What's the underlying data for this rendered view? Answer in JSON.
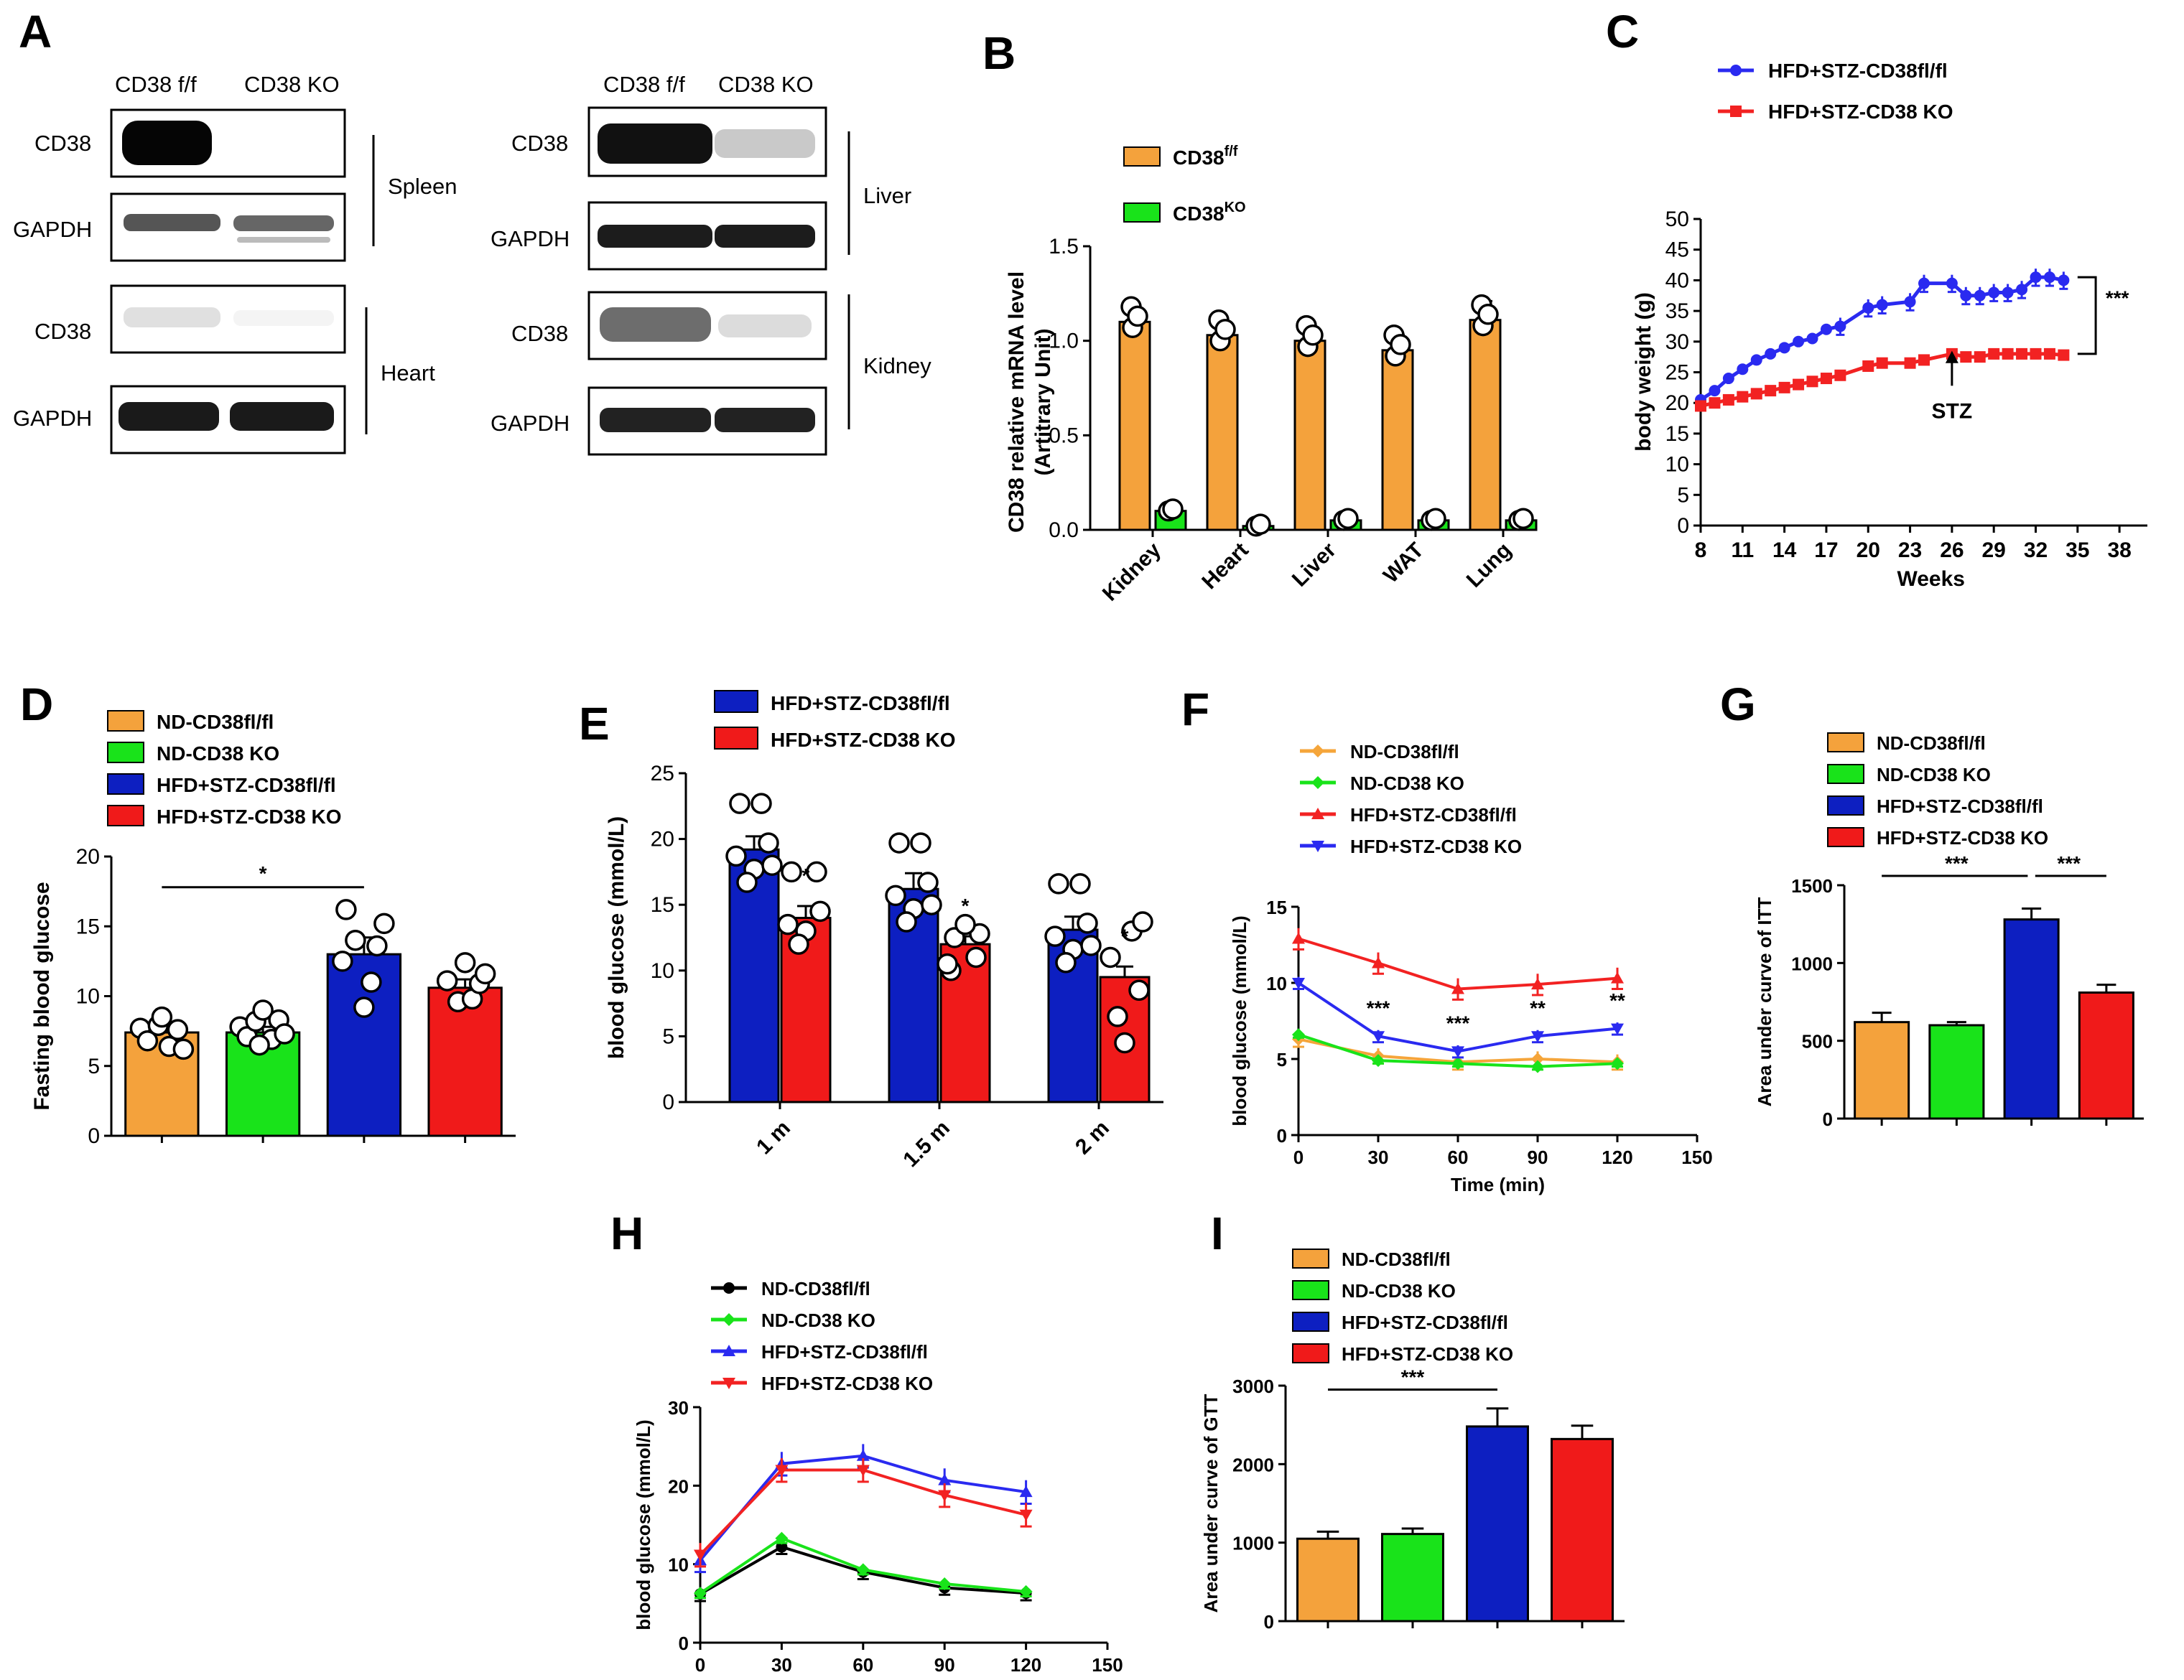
{
  "colors": {
    "orange": "#f4a23c",
    "green": "#19e31a",
    "blue": "#0d1fc1",
    "red": "#f01a1a",
    "black": "#000000",
    "gold": "#f5a53a",
    "blueLine": "#2a2af0",
    "redLine": "#f22222"
  },
  "panel_labels": [
    "A",
    "B",
    "C",
    "D",
    "E",
    "F",
    "G",
    "H",
    "I"
  ],
  "blots": {
    "left": {
      "columns": [
        "CD38 f/f",
        "CD38 KO"
      ],
      "rows": [
        {
          "label": "CD38",
          "tissue": "Spleen"
        },
        {
          "label": "GAPDH",
          "tissue": ""
        },
        {
          "label": "CD38",
          "tissue": "Heart"
        },
        {
          "label": "GAPDH",
          "tissue": ""
        }
      ]
    },
    "right": {
      "columns": [
        "CD38 f/f",
        "CD38 KO"
      ],
      "rows": [
        {
          "label": "CD38",
          "tissue": "Liver"
        },
        {
          "label": "GAPDH",
          "tissue": ""
        },
        {
          "label": "CD38",
          "tissue": "Kidney"
        },
        {
          "label": "GAPDH",
          "tissue": ""
        }
      ]
    }
  },
  "chart_data": [
    {
      "id": "B",
      "type": "bar",
      "title": "",
      "ylabel": "CD38 relative mRNA level",
      "ylabel2": "(Artitrary Unit)",
      "categories": [
        "Kidney",
        "Heart",
        "Liver",
        "WAT",
        "Lung"
      ],
      "ylim": [
        0,
        1.5
      ],
      "yticks": [
        0.0,
        0.5,
        1.0,
        1.5
      ],
      "ytick_labels": [
        "0.0",
        "0.5",
        "1.0",
        "1.5"
      ],
      "legend": [
        {
          "name": "CD38",
          "sup": "f/f"
        },
        {
          "name": "CD38",
          "sup": "KO"
        }
      ],
      "series": [
        {
          "name": "CD38 f/f",
          "values": [
            1.1,
            1.03,
            1.0,
            0.95,
            1.11
          ],
          "errors": [
            0.06,
            0.05,
            0.04,
            0.08,
            0.1
          ]
        },
        {
          "name": "CD38 KO",
          "values": [
            0.1,
            0.02,
            0.05,
            0.05,
            0.05
          ],
          "errors": [
            0.03,
            0.01,
            0.01,
            0.01,
            0.01
          ]
        }
      ]
    },
    {
      "id": "C",
      "type": "line",
      "title": "",
      "xlabel": "Weeks",
      "ylabel": "body weight (g)",
      "xlim": [
        8,
        40
      ],
      "ylim": [
        0,
        50
      ],
      "xticks": [
        8,
        11,
        14,
        17,
        20,
        23,
        26,
        29,
        32,
        35,
        38
      ],
      "xtick_labels": [
        "8",
        "11",
        "14",
        "17",
        "20",
        "23",
        "26",
        "29",
        "32",
        "35",
        "38"
      ],
      "yticks": [
        0,
        5,
        10,
        15,
        20,
        25,
        30,
        35,
        40,
        45,
        50
      ],
      "ytick_labels": [
        "0",
        "5",
        "10",
        "15",
        "20",
        "25",
        "30",
        "35",
        "40",
        "45",
        "50"
      ],
      "annotation": "STZ",
      "significance": "***",
      "series": [
        {
          "name": "HFD+STZ-CD38fl/fl",
          "x": [
            8,
            9,
            10,
            11,
            12,
            13,
            14,
            15,
            16,
            17,
            18,
            20,
            21,
            23,
            24,
            26,
            27,
            28,
            29,
            30,
            31,
            32,
            33,
            34
          ],
          "y": [
            20.5,
            22,
            24,
            25.5,
            27,
            28,
            29,
            30,
            30.5,
            32,
            32.5,
            35.5,
            36,
            36.5,
            39.5,
            39.5,
            37.5,
            37.5,
            38,
            38,
            38.5,
            40.5,
            40.5,
            40
          ]
        },
        {
          "name": "HFD+STZ-CD38 KO",
          "x": [
            8,
            9,
            10,
            11,
            12,
            13,
            14,
            15,
            16,
            17,
            18,
            20,
            21,
            23,
            24,
            26,
            27,
            28,
            29,
            30,
            31,
            32,
            33,
            34
          ],
          "y": [
            19.5,
            20,
            20.5,
            21,
            21.5,
            22,
            22.5,
            23,
            23.5,
            24,
            24.5,
            26,
            26.5,
            26.5,
            27,
            28,
            27.5,
            27.5,
            28,
            28,
            28,
            28,
            28,
            27.8
          ]
        }
      ]
    },
    {
      "id": "D",
      "type": "bar",
      "title": "",
      "ylabel": "Fasting blood glucose",
      "categories": [
        "ND-CD38fl/fl",
        "ND-CD38 KO",
        "HFD+STZ-CD38fl/fl",
        "HFD+STZ-CD38 KO"
      ],
      "ylim": [
        0,
        20
      ],
      "yticks": [
        0,
        5,
        10,
        15,
        20
      ],
      "ytick_labels": [
        "0",
        "5",
        "10",
        "15",
        "20"
      ],
      "values": [
        7.4,
        7.4,
        13.0,
        10.6
      ],
      "errors": [
        0.4,
        0.4,
        1.2,
        0.6
      ],
      "significance": "*"
    },
    {
      "id": "E",
      "type": "bar",
      "title": "",
      "ylabel": "blood glucose (mmol/L)",
      "categories": [
        "1 m",
        "1.5 m",
        "2 m"
      ],
      "ylim": [
        0,
        25
      ],
      "yticks": [
        0,
        5,
        10,
        15,
        20,
        25
      ],
      "ytick_labels": [
        "0",
        "5",
        "10",
        "15",
        "20",
        "25"
      ],
      "legend": [
        "HFD+STZ-CD38fl/fl",
        "HFD+STZ-CD38 KO"
      ],
      "significance": "*",
      "series": [
        {
          "name": "HFD+STZ-CD38fl/fl",
          "values": [
            19.2,
            16.2,
            13.1
          ],
          "errors": [
            1.0,
            1.2,
            1.0
          ]
        },
        {
          "name": "HFD+STZ-CD38 KO",
          "values": [
            14.0,
            12.0,
            9.5
          ],
          "errors": [
            0.9,
            0.6,
            0.8
          ]
        }
      ]
    },
    {
      "id": "F",
      "type": "line",
      "title": "",
      "xlabel": "Time (min)",
      "ylabel": "blood glucose (mmol/L)",
      "xlim": [
        0,
        150
      ],
      "ylim": [
        0,
        15
      ],
      "xticks": [
        0,
        30,
        60,
        90,
        120,
        150
      ],
      "xtick_labels": [
        "0",
        "30",
        "60",
        "90",
        "120",
        "150"
      ],
      "yticks": [
        0,
        5,
        10,
        15
      ],
      "ytick_labels": [
        "0",
        "5",
        "10",
        "15"
      ],
      "x": [
        0,
        30,
        60,
        90,
        120
      ],
      "annotations": [
        "***",
        "***",
        "**",
        "**"
      ],
      "series": [
        {
          "name": "ND-CD38fl/fl",
          "values": [
            6.3,
            5.2,
            4.8,
            5.0,
            4.8
          ]
        },
        {
          "name": "ND-CD38 KO",
          "values": [
            6.6,
            4.9,
            4.7,
            4.5,
            4.7
          ]
        },
        {
          "name": "HFD+STZ-CD38fl/fl",
          "values": [
            12.9,
            11.3,
            9.6,
            9.9,
            10.3
          ]
        },
        {
          "name": "HFD+STZ-CD38 KO",
          "values": [
            10.0,
            6.5,
            5.5,
            6.5,
            7.0
          ]
        }
      ]
    },
    {
      "id": "G",
      "type": "bar",
      "title": "",
      "ylabel": "Area under curve of ITT",
      "categories": [
        "ND-CD38fl/fl",
        "ND-CD38 KO",
        "HFD+STZ-CD38fl/fl",
        "HFD+STZ-CD38 KO"
      ],
      "ylim": [
        0,
        1500
      ],
      "yticks": [
        0,
        500,
        1000,
        1500
      ],
      "ytick_labels": [
        "0",
        "500",
        "1000",
        "1500"
      ],
      "values": [
        620,
        600,
        1280,
        810
      ],
      "errors": [
        60,
        20,
        70,
        50
      ],
      "significance": [
        "***",
        "***"
      ]
    },
    {
      "id": "H",
      "type": "line",
      "title": "",
      "xlabel": "Time (min)",
      "ylabel": "blood glucose (mmol/L)",
      "xlim": [
        0,
        150
      ],
      "ylim": [
        0,
        30
      ],
      "xticks": [
        0,
        30,
        60,
        90,
        120,
        150
      ],
      "xtick_labels": [
        "0",
        "30",
        "60",
        "90",
        "120",
        "150"
      ],
      "yticks": [
        0,
        10,
        20,
        30
      ],
      "ytick_labels": [
        "0",
        "10",
        "20",
        "30"
      ],
      "x": [
        0,
        30,
        60,
        90,
        120
      ],
      "series": [
        {
          "name": "ND-CD38fl/fl",
          "values": [
            6.2,
            12.2,
            9.0,
            7.0,
            6.3
          ]
        },
        {
          "name": "ND-CD38 KO",
          "values": [
            6.3,
            13.3,
            9.3,
            7.5,
            6.5
          ]
        },
        {
          "name": "HFD+STZ-CD38fl/fl",
          "values": [
            10.5,
            22.8,
            23.8,
            20.7,
            19.2
          ]
        },
        {
          "name": "HFD+STZ-CD38 KO",
          "values": [
            11.2,
            22.0,
            22.0,
            18.8,
            16.3
          ]
        }
      ]
    },
    {
      "id": "I",
      "type": "bar",
      "title": "",
      "ylabel": "Area under curve of GTT",
      "categories": [
        "ND-CD38fl/fl",
        "ND-CD38 KO",
        "HFD+STZ-CD38fl/fl",
        "HFD+STZ-CD38 KO"
      ],
      "ylim": [
        0,
        3000
      ],
      "yticks": [
        0,
        1000,
        2000,
        3000
      ],
      "ytick_labels": [
        "0",
        "1000",
        "2000",
        "3000"
      ],
      "values": [
        1050,
        1110,
        2480,
        2320
      ],
      "errors": [
        90,
        70,
        230,
        170
      ],
      "significance": "***"
    }
  ]
}
